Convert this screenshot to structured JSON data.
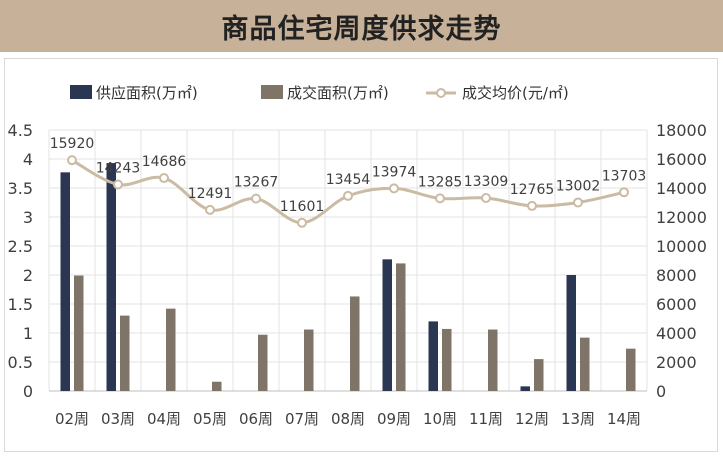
{
  "header": {
    "title": "商品住宅周度供求走势"
  },
  "colors": {
    "supply": "#2b3652",
    "deal": "#7e7467",
    "price": "#cbbba5",
    "title_bg": "#c7b299"
  },
  "chart_data": {
    "type": "bar",
    "title": "商品住宅周度供求走势",
    "categories": [
      "02周",
      "03周",
      "04周",
      "05周",
      "06周",
      "07周",
      "08周",
      "09周",
      "10周",
      "11周",
      "12周",
      "13周",
      "14周"
    ],
    "series": [
      {
        "name": "供应面积(万㎡)",
        "type": "bar",
        "axis": "left",
        "values": [
          3.77,
          3.93,
          0,
          0,
          0,
          0,
          0,
          2.27,
          1.2,
          0,
          0.08,
          2.0,
          0
        ]
      },
      {
        "name": "成交面积(万㎡)",
        "type": "bar",
        "axis": "left",
        "values": [
          1.99,
          1.3,
          1.42,
          0.16,
          0.97,
          1.06,
          1.63,
          2.2,
          1.07,
          1.06,
          0.55,
          0.92,
          0.73
        ]
      },
      {
        "name": "成交均价(元/㎡)",
        "type": "line",
        "axis": "right",
        "values": [
          15920,
          14243,
          14686,
          12491,
          13267,
          11601,
          13454,
          13974,
          13285,
          13309,
          12765,
          13002,
          13703
        ]
      }
    ],
    "y_left": {
      "min": 0,
      "max": 4.5,
      "ticks": [
        "0",
        "0.5",
        "1",
        "1.5",
        "2",
        "2.5",
        "3",
        "3.5",
        "4",
        "4.5"
      ]
    },
    "y_right": {
      "min": 0,
      "max": 18000,
      "ticks": [
        "0",
        "2000",
        "4000",
        "6000",
        "8000",
        "10000",
        "12000",
        "14000",
        "16000",
        "18000"
      ]
    },
    "legend_position": "top",
    "grid": true
  }
}
